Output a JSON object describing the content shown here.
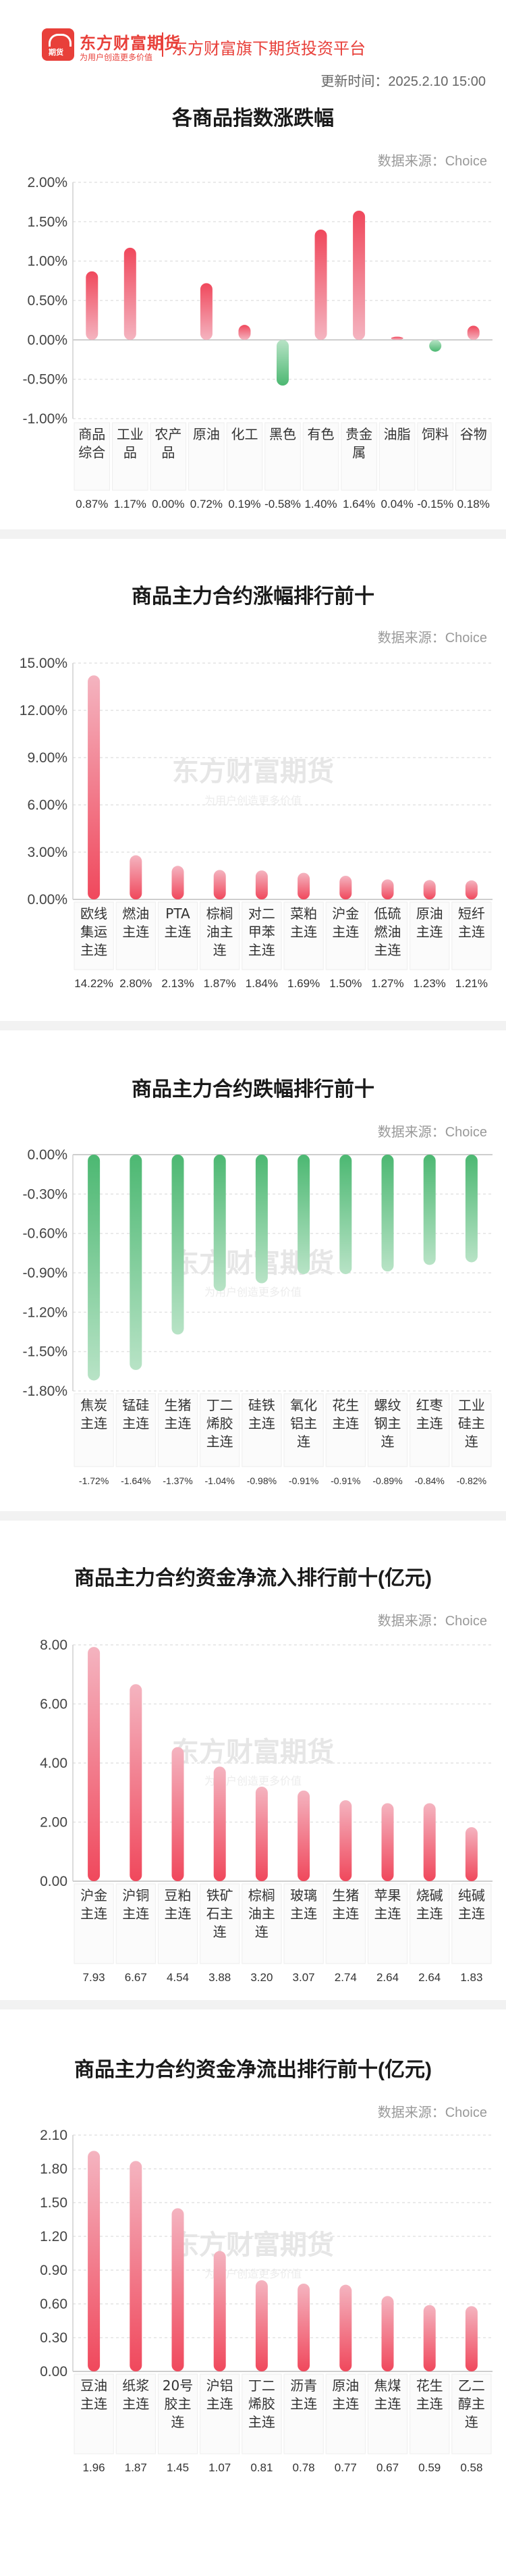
{
  "header": {
    "brand_name": "东方财富期货",
    "brand_slogan": "为用户创造更多价值",
    "logo_text": "期货",
    "platform": "东方财富旗下期货投资平台",
    "update_time": "更新时间：2025.2.10 15:00"
  },
  "sections": [
    {
      "title": "各商品指数涨跌幅",
      "source": "数据来源：Choice",
      "watermark": "",
      "watermark_sub": ""
    },
    {
      "title": "商品主力合约涨幅排行前十",
      "source": "数据来源：Choice",
      "watermark": "东方财富期货",
      "watermark_sub": "为用户创造更多价值"
    },
    {
      "title": "商品主力合约跌幅排行前十",
      "source": "数据来源：Choice",
      "watermark": "东方财富期货",
      "watermark_sub": "为用户创造更多价值"
    },
    {
      "title": "商品主力合约资金净流入排行前十(亿元)",
      "source": "数据来源：Choice",
      "watermark": "东方财富期货",
      "watermark_sub": "为用户创造更多价值"
    },
    {
      "title": "商品主力合约资金净流出排行前十(亿元)",
      "source": "数据来源：Choice",
      "watermark": "东方财富期货",
      "watermark_sub": "为用户创造更多价值"
    }
  ],
  "colors": {
    "up": "#f0485c",
    "down": "#4cb872",
    "accent": "#e8403a"
  },
  "chart_data": [
    {
      "type": "bar",
      "title": "各商品指数涨跌幅",
      "categories": [
        "商品综合",
        "工业品",
        "农产品",
        "原油",
        "化工",
        "黑色",
        "有色",
        "贵金属",
        "油脂",
        "饲料",
        "谷物"
      ],
      "values": [
        0.87,
        1.17,
        0.0,
        0.72,
        0.19,
        -0.58,
        1.4,
        1.64,
        0.04,
        -0.15,
        0.18
      ],
      "value_labels": [
        "0.87%",
        "1.17%",
        "0.00%",
        "0.72%",
        "0.19%",
        "-0.58%",
        "1.40%",
        "1.64%",
        "0.04%",
        "-0.15%",
        "0.18%"
      ],
      "ylim": [
        -1.0,
        2.0
      ],
      "yticks": [
        "-1.00%",
        "-0.50%",
        "0.00%",
        "0.50%",
        "1.00%",
        "1.50%",
        "2.00%"
      ],
      "ytick_values": [
        -1.0,
        -0.5,
        0.0,
        0.5,
        1.0,
        1.5,
        2.0
      ],
      "grid": true
    },
    {
      "type": "bar",
      "title": "商品主力合约涨幅排行前十",
      "categories": [
        "欧线集运主连",
        "燃油主连",
        "PTA主连",
        "棕榈油主连",
        "对二甲苯主连",
        "菜粕主连",
        "沪金主连",
        "低硫燃油主连",
        "原油主连",
        "短纤主连"
      ],
      "values": [
        14.22,
        2.8,
        2.13,
        1.87,
        1.84,
        1.69,
        1.5,
        1.27,
        1.23,
        1.21
      ],
      "value_labels": [
        "14.22%",
        "2.80%",
        "2.13%",
        "1.87%",
        "1.84%",
        "1.69%",
        "1.50%",
        "1.27%",
        "1.23%",
        "1.21%"
      ],
      "ylim": [
        0,
        15.0
      ],
      "yticks": [
        "0.00%",
        "3.00%",
        "6.00%",
        "9.00%",
        "12.00%",
        "15.00%"
      ],
      "ytick_values": [
        0,
        3,
        6,
        9,
        12,
        15
      ],
      "grid": true
    },
    {
      "type": "bar",
      "title": "商品主力合约跌幅排行前十",
      "categories": [
        "焦炭主连",
        "锰硅主连",
        "生猪主连",
        "丁二烯胶主连",
        "硅铁主连",
        "氧化铝主连",
        "花生主连",
        "螺纹钢主连",
        "红枣主连",
        "工业硅主连"
      ],
      "values": [
        -1.72,
        -1.64,
        -1.37,
        -1.04,
        -0.98,
        -0.91,
        -0.91,
        -0.89,
        -0.84,
        -0.82
      ],
      "value_labels": [
        "-1.72%",
        "-1.64%",
        "-1.37%",
        "-1.04%",
        "-0.98%",
        "-0.91%",
        "-0.91%",
        "-0.89%",
        "-0.84%",
        "-0.82%"
      ],
      "ylim": [
        -1.8,
        0
      ],
      "yticks": [
        "-1.80%",
        "-1.50%",
        "-1.20%",
        "-0.90%",
        "-0.60%",
        "-0.30%",
        "0.00%"
      ],
      "ytick_values": [
        -1.8,
        -1.5,
        -1.2,
        -0.9,
        -0.6,
        -0.3,
        0
      ],
      "grid": true
    },
    {
      "type": "bar",
      "title": "商品主力合约资金净流入排行前十(亿元)",
      "categories": [
        "沪金主连",
        "沪铜主连",
        "豆粕主连",
        "铁矿石主连",
        "棕榈油主连",
        "玻璃主连",
        "生猪主连",
        "苹果主连",
        "烧碱主连",
        "纯碱主连"
      ],
      "values": [
        7.93,
        6.67,
        4.54,
        3.88,
        3.2,
        3.07,
        2.74,
        2.64,
        2.64,
        1.83
      ],
      "value_labels": [
        "7.93",
        "6.67",
        "4.54",
        "3.88",
        "3.20",
        "3.07",
        "2.74",
        "2.64",
        "2.64",
        "1.83"
      ],
      "ylim": [
        0,
        8.0
      ],
      "yticks": [
        "0.00",
        "2.00",
        "4.00",
        "6.00",
        "8.00"
      ],
      "ytick_values": [
        0,
        2,
        4,
        6,
        8
      ],
      "grid": true
    },
    {
      "type": "bar",
      "title": "商品主力合约资金净流出排行前十(亿元)",
      "categories": [
        "豆油主连",
        "纸浆主连",
        "20号胶主连",
        "沪铝主连",
        "丁二烯胶主连",
        "沥青主连",
        "原油主连",
        "焦煤主连",
        "花生主连",
        "乙二醇主连"
      ],
      "values": [
        1.96,
        1.87,
        1.45,
        1.07,
        0.81,
        0.78,
        0.77,
        0.67,
        0.59,
        0.58
      ],
      "value_labels": [
        "1.96",
        "1.87",
        "1.45",
        "1.07",
        "0.81",
        "0.78",
        "0.77",
        "0.67",
        "0.59",
        "0.58"
      ],
      "ylim": [
        0,
        2.1
      ],
      "yticks": [
        "0.00",
        "0.30",
        "0.60",
        "0.90",
        "1.20",
        "1.50",
        "1.80",
        "2.10"
      ],
      "ytick_values": [
        0,
        0.3,
        0.6,
        0.9,
        1.2,
        1.5,
        1.8,
        2.1
      ],
      "grid": true
    }
  ]
}
